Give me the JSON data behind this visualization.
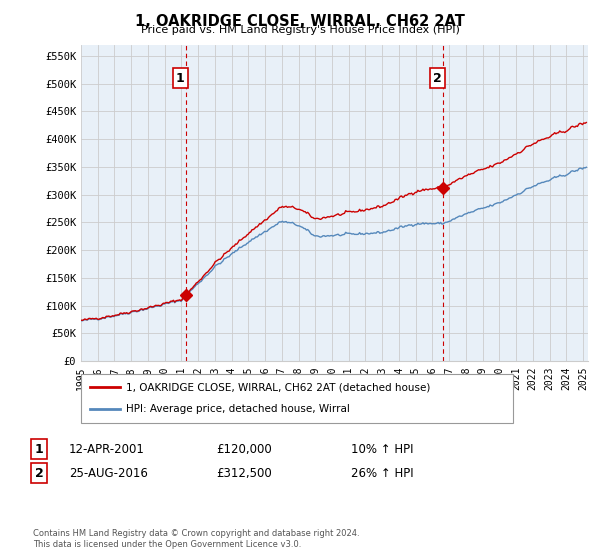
{
  "title": "1, OAKRIDGE CLOSE, WIRRAL, CH62 2AT",
  "subtitle": "Price paid vs. HM Land Registry's House Price Index (HPI)",
  "ylabel_ticks": [
    "£0",
    "£50K",
    "£100K",
    "£150K",
    "£200K",
    "£250K",
    "£300K",
    "£350K",
    "£400K",
    "£450K",
    "£500K",
    "£550K"
  ],
  "y_values": [
    0,
    50000,
    100000,
    150000,
    200000,
    250000,
    300000,
    350000,
    400000,
    450000,
    500000,
    550000
  ],
  "ylim": [
    0,
    570000
  ],
  "x_start_year": 1995,
  "x_end_year": 2025,
  "x_tick_years": [
    1995,
    1996,
    1997,
    1998,
    1999,
    2000,
    2001,
    2002,
    2003,
    2004,
    2005,
    2006,
    2007,
    2008,
    2009,
    2010,
    2011,
    2012,
    2013,
    2014,
    2015,
    2016,
    2017,
    2018,
    2019,
    2020,
    2021,
    2022,
    2023,
    2024,
    2025
  ],
  "sale1_x": 2001.28,
  "sale1_y": 120000,
  "sale1_label": "1",
  "sale1_date": "12-APR-2001",
  "sale1_price": "£120,000",
  "sale1_hpi": "10% ↑ HPI",
  "sale2_x": 2016.65,
  "sale2_y": 312500,
  "sale2_label": "2",
  "sale2_date": "25-AUG-2016",
  "sale2_price": "£312,500",
  "sale2_hpi": "26% ↑ HPI",
  "line_color_red": "#cc0000",
  "line_color_blue": "#5588bb",
  "fill_color_blue": "#ddeeff",
  "vline_color": "#cc0000",
  "grid_color": "#cccccc",
  "background_color": "#ffffff",
  "plot_bg_color": "#e8f0f8",
  "legend_label_red": "1, OAKRIDGE CLOSE, WIRRAL, CH62 2AT (detached house)",
  "legend_label_blue": "HPI: Average price, detached house, Wirral",
  "footer1": "Contains HM Land Registry data © Crown copyright and database right 2024.",
  "footer2": "This data is licensed under the Open Government Licence v3.0."
}
